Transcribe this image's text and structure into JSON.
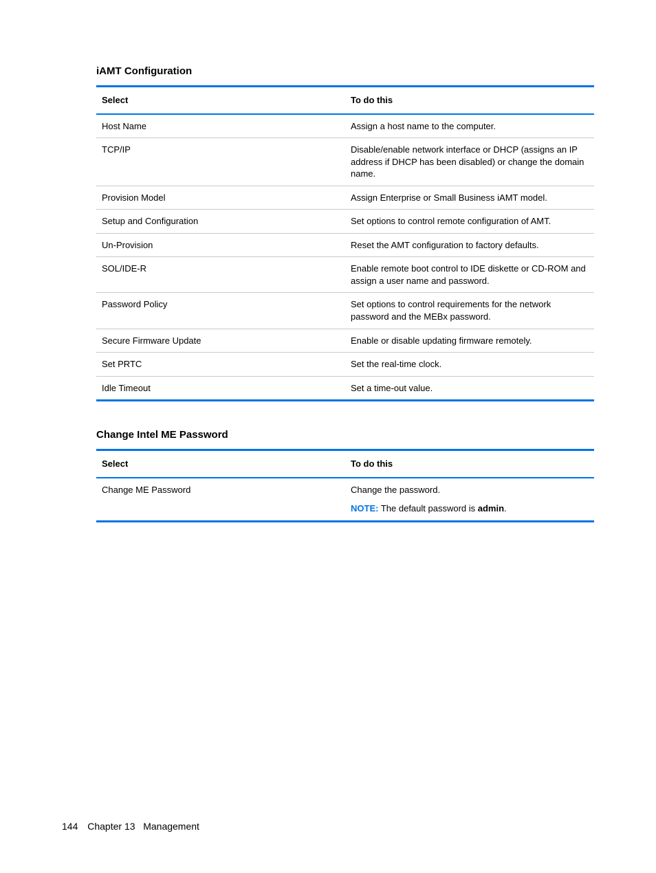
{
  "sections": [
    {
      "title": "iAMT Configuration",
      "columns": [
        "Select",
        "To do this"
      ],
      "rows": [
        {
          "select": "Host Name",
          "todo": "Assign a host name to the computer."
        },
        {
          "select": "TCP/IP",
          "todo": "Disable/enable network interface or DHCP (assigns an IP address if DHCP has been disabled) or change the domain name."
        },
        {
          "select": "Provision Model",
          "todo": "Assign Enterprise or Small Business iAMT model."
        },
        {
          "select": "Setup and Configuration",
          "todo": "Set options to control remote configuration of AMT."
        },
        {
          "select": "Un-Provision",
          "todo": "Reset the AMT configuration to factory defaults."
        },
        {
          "select": "SOL/IDE-R",
          "todo": "Enable remote boot control to IDE diskette or CD-ROM and assign a user name and password."
        },
        {
          "select": "Password Policy",
          "todo": "Set options to control requirements for the network password and the MEBx password."
        },
        {
          "select": "Secure Firmware Update",
          "todo": "Enable or disable updating firmware remotely."
        },
        {
          "select": "Set PRTC",
          "todo": "Set the real-time clock."
        },
        {
          "select": "Idle Timeout",
          "todo": "Set a time-out value."
        }
      ]
    },
    {
      "title": "Change Intel ME Password",
      "columns": [
        "Select",
        "To do this"
      ],
      "rows": [
        {
          "select": "Change ME Password",
          "todo": "Change the password.",
          "note": {
            "label": "NOTE:",
            "prefix": "The default password is ",
            "bold": "admin",
            "suffix": "."
          }
        }
      ]
    }
  ],
  "footer": {
    "page_number": "144",
    "chapter_label": "Chapter 13",
    "chapter_title": "Management"
  },
  "colors": {
    "accent_blue": "#0073e6",
    "row_divider": "#c9c9c9",
    "text": "#000000",
    "background": "#ffffff"
  }
}
